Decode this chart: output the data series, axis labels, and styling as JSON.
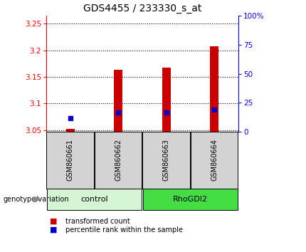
{
  "title": "GDS4455 / 233330_s_at",
  "samples": [
    "GSM860661",
    "GSM860662",
    "GSM860663",
    "GSM860664"
  ],
  "groups": [
    "control",
    "control",
    "RhoGDI2",
    "RhoGDI2"
  ],
  "group_colors": {
    "control": "#d4f5d4",
    "RhoGDI2": "#44dd44"
  },
  "red_values": [
    3.053,
    3.163,
    3.167,
    3.207
  ],
  "blue_values": [
    3.073,
    3.083,
    3.083,
    3.088
  ],
  "bar_bottom": 3.047,
  "ylim_left": [
    3.047,
    3.265
  ],
  "ylim_right": [
    0,
    100
  ],
  "left_ticks": [
    3.05,
    3.1,
    3.15,
    3.2,
    3.25
  ],
  "right_ticks": [
    0,
    25,
    50,
    75,
    100
  ],
  "right_tick_labels": [
    "0",
    "25",
    "50",
    "75",
    "100%"
  ],
  "bar_color": "#cc0000",
  "dot_color": "#0000cc",
  "legend_red": "transformed count",
  "legend_blue": "percentile rank within the sample",
  "label_left": "genotype/variation",
  "bg_color": "#ffffff",
  "sample_box_color": "#d3d3d3",
  "title_fontsize": 10,
  "tick_fontsize": 7.5,
  "sample_fontsize": 7,
  "group_fontsize": 8,
  "legend_fontsize": 7
}
